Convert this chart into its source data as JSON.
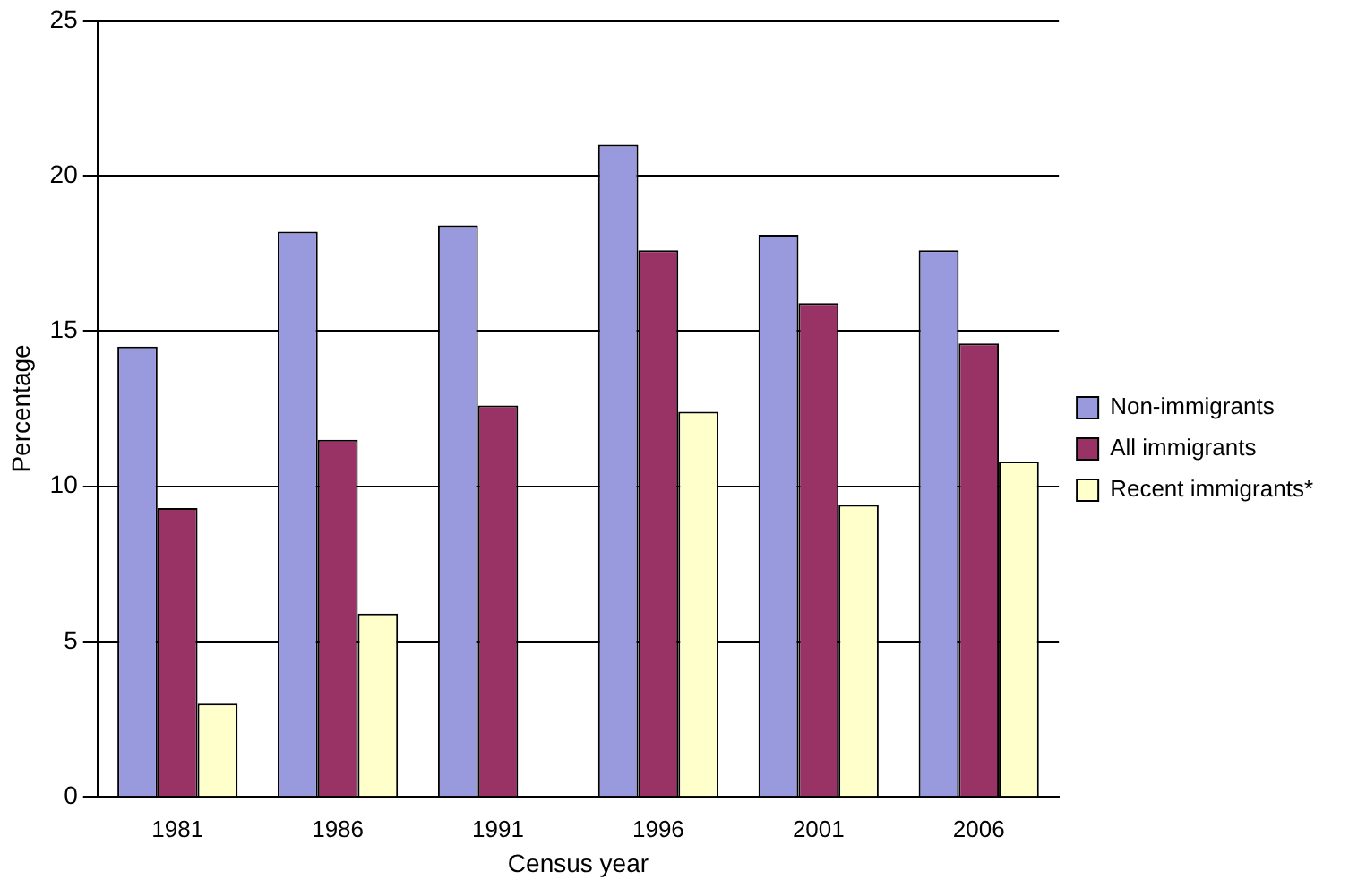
{
  "chart_data": {
    "type": "bar",
    "xlabel": "Census year",
    "ylabel": "Percentage",
    "categories": [
      "1981",
      "1986",
      "1991",
      "1996",
      "2001",
      "2006"
    ],
    "series": [
      {
        "name": "Non-immigrants",
        "color": "#9999dd",
        "values": [
          14.5,
          18.2,
          18.4,
          21.0,
          18.1,
          17.6
        ]
      },
      {
        "name": "All immigrants",
        "color": "#993366",
        "values": [
          9.3,
          11.5,
          12.6,
          17.6,
          15.9,
          14.6
        ]
      },
      {
        "name": "Recent immigrants*",
        "color": "#ffffcc",
        "values": [
          3.0,
          5.9,
          null,
          12.4,
          9.4,
          10.8
        ]
      }
    ],
    "ylim": [
      0,
      25
    ],
    "yticks": [
      0,
      5,
      10,
      15,
      20,
      25
    ],
    "grid": "y",
    "legend": "right"
  }
}
